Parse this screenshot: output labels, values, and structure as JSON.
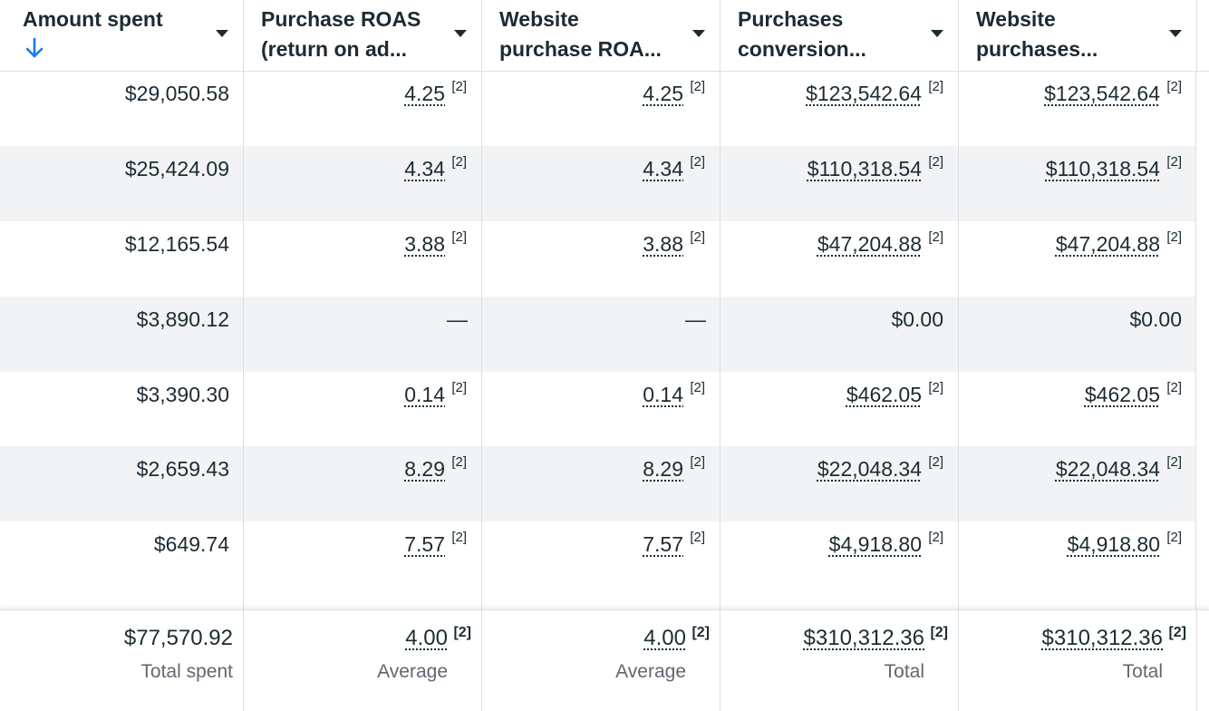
{
  "columns": [
    {
      "title_line1": "Amount spent",
      "title_line2": ""
    },
    {
      "title_line1": "Purchase ROAS",
      "title_line2": "(return on ad..."
    },
    {
      "title_line1": "Website",
      "title_line2": "purchase ROA..."
    },
    {
      "title_line1": "Purchases",
      "title_line2": "conversion..."
    },
    {
      "title_line1": "Website",
      "title_line2": "purchases..."
    }
  ],
  "sort": {
    "column": "Amount spent",
    "direction": "descending",
    "icon": "arrow-down-icon",
    "color": "#1877f2"
  },
  "footnote_marker": "[2]",
  "rows": [
    {
      "amount": "$29,050.58",
      "roas": "4.25",
      "web_roas": "4.25",
      "conv": "$123,542.64",
      "web_conv": "$123,542.64"
    },
    {
      "amount": "$25,424.09",
      "roas": "4.34",
      "web_roas": "4.34",
      "conv": "$110,318.54",
      "web_conv": "$110,318.54"
    },
    {
      "amount": "$12,165.54",
      "roas": "3.88",
      "web_roas": "3.88",
      "conv": "$47,204.88",
      "web_conv": "$47,204.88"
    },
    {
      "amount": "$3,890.12",
      "roas": "—",
      "web_roas": "—",
      "conv": "$0.00",
      "web_conv": "$0.00"
    },
    {
      "amount": "$3,390.30",
      "roas": "0.14",
      "web_roas": "0.14",
      "conv": "$462.05",
      "web_conv": "$462.05"
    },
    {
      "amount": "$2,659.43",
      "roas": "8.29",
      "web_roas": "8.29",
      "conv": "$22,048.34",
      "web_conv": "$22,048.34"
    },
    {
      "amount": "$649.74",
      "roas": "7.57",
      "web_roas": "7.57",
      "conv": "$4,918.80",
      "web_conv": "$4,918.80"
    }
  ],
  "footer": {
    "amount": "$77,570.92",
    "amount_label": "Total spent",
    "roas": "4.00",
    "roas_label": "Average",
    "web_roas": "4.00",
    "web_roas_label": "Average",
    "conv": "$310,312.36",
    "conv_label": "Total",
    "web_conv": "$310,312.36",
    "web_conv_label": "Total"
  },
  "colors": {
    "row_alt": "#f2f3f5",
    "text": "#1c2b33",
    "muted": "#606770",
    "border": "#dddfe2"
  }
}
